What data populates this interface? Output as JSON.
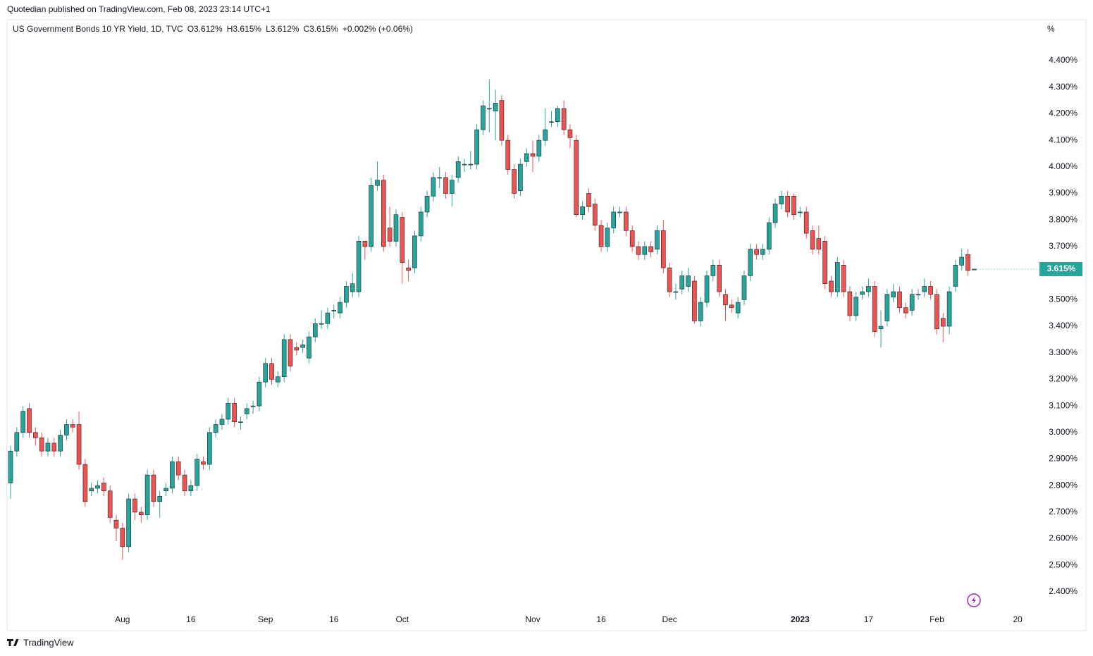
{
  "published": "Quotedian published on TradingView.com, Feb 08, 2023 23:14 UTC+1",
  "brand": "TradingView",
  "chart_data": {
    "type": "candlestick",
    "title": "US Government Bonds 10 YR Yield, 1D, TVC",
    "legend": [
      "O3.612%",
      "H3.615%",
      "L3.612%",
      "C3.615%",
      "+0.002% (+0.06%)"
    ],
    "y_unit": "%",
    "up_color": "#26a69a",
    "down_color": "#ef5350",
    "border_color": "#1e222d",
    "open": [
      2.81,
      2.93,
      3.0,
      3.09,
      3.0,
      2.98,
      2.93,
      2.96,
      2.93,
      2.99,
      3.03,
      3.03,
      2.88,
      2.78,
      2.79,
      2.81,
      2.78,
      2.67,
      2.64,
      2.57,
      2.75,
      2.7,
      2.69,
      2.84,
      2.74,
      2.78,
      2.79,
      2.89,
      2.84,
      2.78,
      2.8,
      2.89,
      2.88,
      3.0,
      3.03,
      3.05,
      3.11,
      3.04,
      3.07,
      3.1,
      3.1,
      3.19,
      3.26,
      3.19,
      3.21,
      3.35,
      3.32,
      3.32,
      3.28,
      3.36,
      3.41,
      3.41,
      3.46,
      3.45,
      3.49,
      3.53,
      3.53,
      3.72,
      3.7,
      3.93,
      3.95,
      3.77,
      3.72,
      3.81,
      3.62,
      3.62,
      3.74,
      3.83,
      3.89,
      3.96,
      3.96,
      3.9,
      3.96,
      4.01,
      4.01,
      4.01,
      4.14,
      4.22,
      4.21,
      4.25,
      4.1,
      3.99,
      3.91,
      4.02,
      4.05,
      4.04,
      4.1,
      4.17,
      4.17,
      4.22,
      4.14,
      4.1,
      3.82,
      3.9,
      3.86,
      3.78,
      3.7,
      3.77,
      3.83,
      3.83,
      3.76,
      3.7,
      3.67,
      3.7,
      3.69,
      3.76,
      3.62,
      3.53,
      3.54,
      3.55,
      3.57,
      3.42,
      3.49,
      3.59,
      3.63,
      3.52,
      3.48,
      3.45,
      3.5,
      3.59,
      3.69,
      3.67,
      3.69,
      3.79,
      3.86,
      3.89,
      3.89,
      3.83,
      3.83,
      3.76,
      3.73,
      3.72,
      3.57,
      3.53,
      3.63,
      3.53,
      3.44,
      3.52,
      3.53,
      3.55,
      3.39,
      3.42,
      3.51,
      3.53,
      3.47,
      3.46,
      3.52,
      3.53,
      3.55,
      3.52,
      3.43,
      3.4,
      3.55,
      3.63,
      3.67,
      3.612
    ],
    "high": [
      2.95,
      3.02,
      3.1,
      3.11,
      3.02,
      3.0,
      2.98,
      2.98,
      3.01,
      3.05,
      3.05,
      3.08,
      2.9,
      2.81,
      2.82,
      2.83,
      2.8,
      2.69,
      2.66,
      2.77,
      2.77,
      2.72,
      2.86,
      2.86,
      2.78,
      2.81,
      2.91,
      2.91,
      2.86,
      2.82,
      2.92,
      2.91,
      3.02,
      3.05,
      3.07,
      3.13,
      3.13,
      3.06,
      3.11,
      3.12,
      3.21,
      3.28,
      3.28,
      3.23,
      3.37,
      3.37,
      3.34,
      3.35,
      3.38,
      3.43,
      3.46,
      3.47,
      3.48,
      3.51,
      3.57,
      3.6,
      3.74,
      3.72,
      3.96,
      4.02,
      3.97,
      3.85,
      3.84,
      3.83,
      3.65,
      3.76,
      3.85,
      3.91,
      3.98,
      4.0,
      3.98,
      3.97,
      4.04,
      4.03,
      4.06,
      4.16,
      4.25,
      4.33,
      4.29,
      4.27,
      4.12,
      4.01,
      4.03,
      4.07,
      4.1,
      4.12,
      4.22,
      4.21,
      4.23,
      4.25,
      4.16,
      4.12,
      3.87,
      3.92,
      3.88,
      3.8,
      3.79,
      3.85,
      3.85,
      3.85,
      3.78,
      3.72,
      3.72,
      3.72,
      3.78,
      3.8,
      3.64,
      3.56,
      3.61,
      3.62,
      3.59,
      3.51,
      3.61,
      3.65,
      3.65,
      3.54,
      3.5,
      3.51,
      3.61,
      3.71,
      3.71,
      3.71,
      3.81,
      3.88,
      3.91,
      3.91,
      3.9,
      3.85,
      3.85,
      3.78,
      3.78,
      3.74,
      3.59,
      3.66,
      3.65,
      3.55,
      3.53,
      3.55,
      3.58,
      3.57,
      3.46,
      3.54,
      3.56,
      3.55,
      3.49,
      3.54,
      3.54,
      3.58,
      3.57,
      3.54,
      3.45,
      3.55,
      3.65,
      3.69,
      3.69,
      3.615
    ],
    "low": [
      2.75,
      2.91,
      2.98,
      2.98,
      2.95,
      2.91,
      2.91,
      2.91,
      2.91,
      2.97,
      3.0,
      2.86,
      2.72,
      2.76,
      2.77,
      2.76,
      2.66,
      2.59,
      2.52,
      2.55,
      2.67,
      2.66,
      2.67,
      2.72,
      2.68,
      2.76,
      2.77,
      2.82,
      2.76,
      2.76,
      2.78,
      2.86,
      2.86,
      2.98,
      3.01,
      3.03,
      3.02,
      3.01,
      3.05,
      3.07,
      3.08,
      3.17,
      3.18,
      3.17,
      3.19,
      3.23,
      3.29,
      3.3,
      3.26,
      3.34,
      3.39,
      3.39,
      3.43,
      3.43,
      3.47,
      3.51,
      3.51,
      3.65,
      3.68,
      3.91,
      3.68,
      3.7,
      3.7,
      3.56,
      3.57,
      3.6,
      3.72,
      3.81,
      3.87,
      3.92,
      3.88,
      3.85,
      3.94,
      3.98,
      3.99,
      3.99,
      4.12,
      4.13,
      4.1,
      4.08,
      3.97,
      3.88,
      3.89,
      4.0,
      3.98,
      4.02,
      4.08,
      4.15,
      4.15,
      4.12,
      4.07,
      3.81,
      3.8,
      3.83,
      3.76,
      3.68,
      3.68,
      3.75,
      3.81,
      3.74,
      3.68,
      3.65,
      3.65,
      3.66,
      3.67,
      3.6,
      3.51,
      3.5,
      3.52,
      3.53,
      3.41,
      3.4,
      3.47,
      3.57,
      3.51,
      3.42,
      3.45,
      3.43,
      3.48,
      3.57,
      3.65,
      3.65,
      3.67,
      3.77,
      3.84,
      3.81,
      3.8,
      3.81,
      3.73,
      3.67,
      3.67,
      3.54,
      3.51,
      3.51,
      3.51,
      3.42,
      3.42,
      3.5,
      3.51,
      3.36,
      3.32,
      3.4,
      3.49,
      3.45,
      3.43,
      3.44,
      3.5,
      3.51,
      3.5,
      3.37,
      3.34,
      3.37,
      3.53,
      3.61,
      3.59,
      3.612
    ],
    "close": [
      2.93,
      3.0,
      3.08,
      3.0,
      2.98,
      2.93,
      2.96,
      2.93,
      2.99,
      3.03,
      3.02,
      2.88,
      2.74,
      2.79,
      2.8,
      2.78,
      2.68,
      2.64,
      2.57,
      2.75,
      2.7,
      2.69,
      2.84,
      2.74,
      2.76,
      2.79,
      2.89,
      2.84,
      2.78,
      2.8,
      2.9,
      2.88,
      3.0,
      3.03,
      3.05,
      3.11,
      3.04,
      3.04,
      3.09,
      3.1,
      3.19,
      3.26,
      3.2,
      3.21,
      3.35,
      3.25,
      3.31,
      3.33,
      3.36,
      3.41,
      3.41,
      3.45,
      3.46,
      3.49,
      3.55,
      3.56,
      3.72,
      3.7,
      3.93,
      3.95,
      3.7,
      3.72,
      3.82,
      3.64,
      3.61,
      3.74,
      3.83,
      3.89,
      3.96,
      3.96,
      3.9,
      3.95,
      4.02,
      4.01,
      4.01,
      4.14,
      4.23,
      4.22,
      4.24,
      4.1,
      3.99,
      3.9,
      4.01,
      4.05,
      4.04,
      4.1,
      4.14,
      4.17,
      4.22,
      4.14,
      4.11,
      3.82,
      3.85,
      3.85,
      3.78,
      3.7,
      3.77,
      3.83,
      3.83,
      3.76,
      3.7,
      3.67,
      3.7,
      3.68,
      3.76,
      3.62,
      3.53,
      3.53,
      3.59,
      3.59,
      3.42,
      3.49,
      3.59,
      3.63,
      3.53,
      3.48,
      3.47,
      3.49,
      3.59,
      3.69,
      3.67,
      3.69,
      3.79,
      3.86,
      3.89,
      3.83,
      3.82,
      3.83,
      3.75,
      3.69,
      3.69,
      3.56,
      3.53,
      3.64,
      3.53,
      3.44,
      3.51,
      3.53,
      3.55,
      3.38,
      3.4,
      3.52,
      3.53,
      3.47,
      3.45,
      3.52,
      3.52,
      3.55,
      3.52,
      3.39,
      3.4,
      3.53,
      3.63,
      3.66,
      3.61,
      3.615
    ],
    "xlim": [
      -0.57,
      165.5
    ],
    "xticks": [
      {
        "value": 18,
        "label": "Aug"
      },
      {
        "value": 29,
        "label": "16"
      },
      {
        "value": 41,
        "label": "Sep"
      },
      {
        "value": 52,
        "label": "16"
      },
      {
        "value": 63,
        "label": "Oct"
      },
      {
        "value": 84,
        "label": "Nov"
      },
      {
        "value": 95,
        "label": "16"
      },
      {
        "value": 106,
        "label": "Dec"
      },
      {
        "value": 127,
        "label": "2023"
      },
      {
        "value": 138,
        "label": "17"
      },
      {
        "value": 149,
        "label": "Feb"
      },
      {
        "value": 162,
        "label": "20"
      }
    ],
    "ylim": [
      2.254,
      4.554
    ],
    "yticks": [
      {
        "value": 4.4,
        "label": "4.400%"
      },
      {
        "value": 4.3,
        "label": "4.300%"
      },
      {
        "value": 4.2,
        "label": "4.200%"
      },
      {
        "value": 4.1,
        "label": "4.100%"
      },
      {
        "value": 4.0,
        "label": "4.000%"
      },
      {
        "value": 3.9,
        "label": "3.900%"
      },
      {
        "value": 3.8,
        "label": "3.800%"
      },
      {
        "value": 3.7,
        "label": "3.700%"
      },
      {
        "value": 3.6,
        "label": "3.600%"
      },
      {
        "value": 3.5,
        "label": "3.500%"
      },
      {
        "value": 3.4,
        "label": "3.400%"
      },
      {
        "value": 3.3,
        "label": "3.300%"
      },
      {
        "value": 3.2,
        "label": "3.200%"
      },
      {
        "value": 3.1,
        "label": "3.100%"
      },
      {
        "value": 3.0,
        "label": "3.000%"
      },
      {
        "value": 2.9,
        "label": "2.900%"
      },
      {
        "value": 2.8,
        "label": "2.800%"
      },
      {
        "value": 2.7,
        "label": "2.700%"
      },
      {
        "value": 2.6,
        "label": "2.600%"
      },
      {
        "value": 2.5,
        "label": "2.500%"
      },
      {
        "value": 2.4,
        "label": "2.400%"
      }
    ],
    "last_price": {
      "value": 3.615,
      "label": "3.615%"
    }
  }
}
